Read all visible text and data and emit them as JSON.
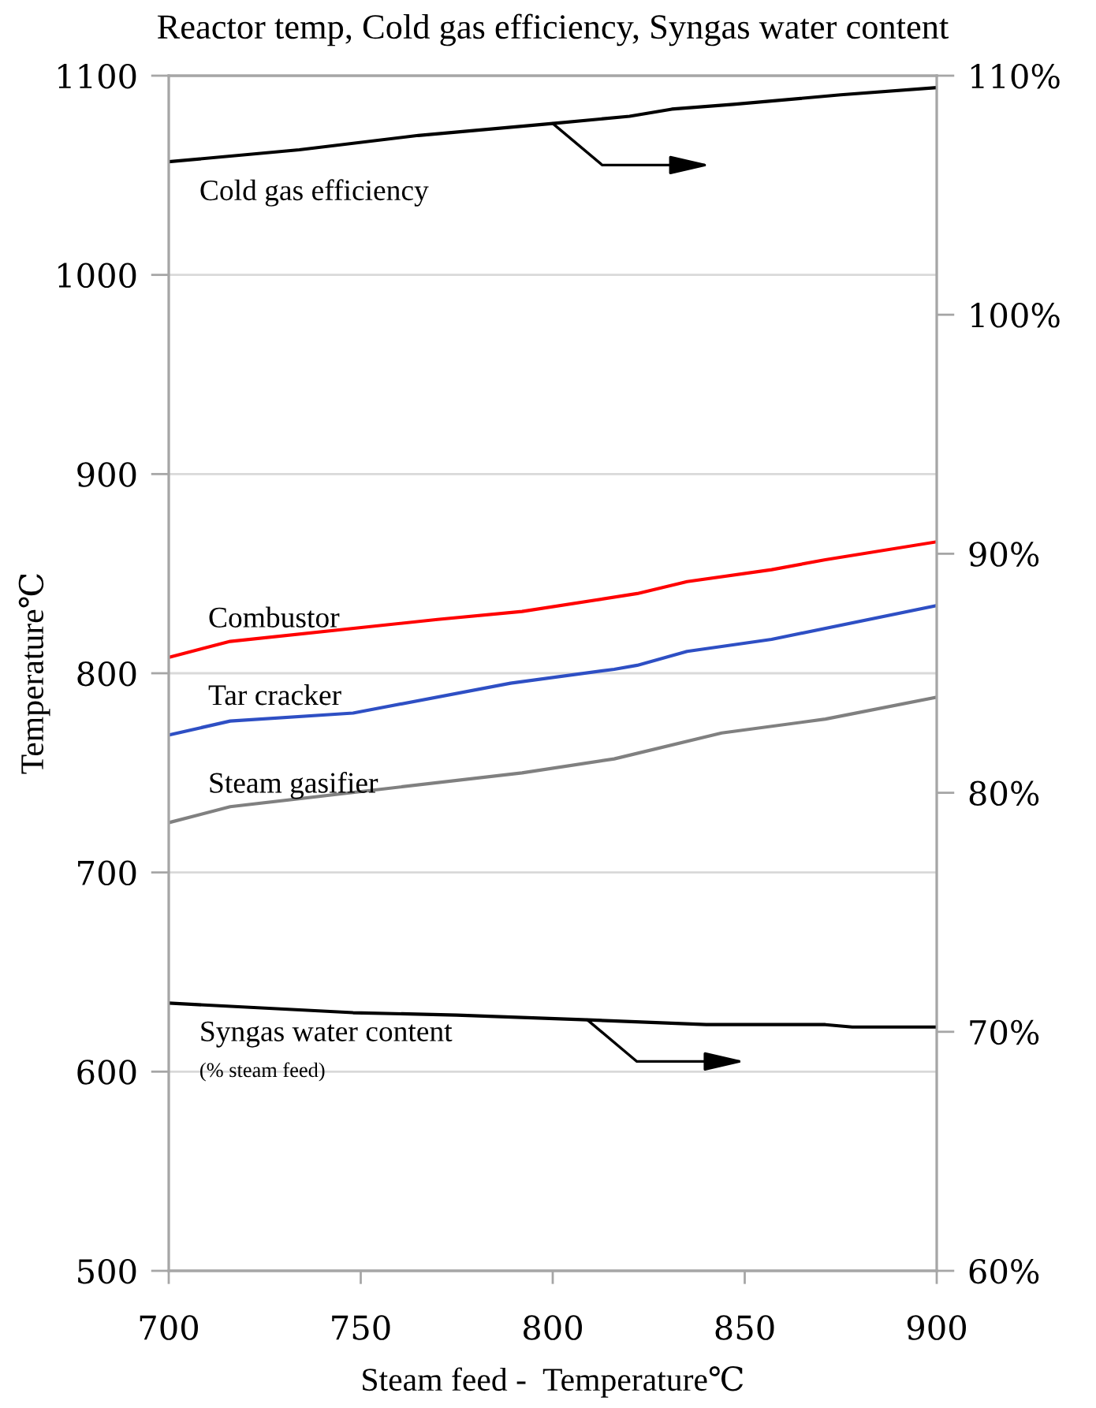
{
  "chart_data": {
    "type": "line",
    "title": "Reactor temp, Cold gas efficiency, Syngas water content",
    "xlabel": "Steam feed -  Temperature℃",
    "ylabel": "Temperature℃",
    "xlim": [
      700,
      900
    ],
    "xticks": [
      700,
      750,
      800,
      850,
      900
    ],
    "ylim": [
      500,
      1100
    ],
    "yticks": [
      500,
      600,
      700,
      800,
      900,
      1000,
      1100
    ],
    "y2lim": [
      60,
      110
    ],
    "y2ticks": [
      {
        "value": 60,
        "label": "60%"
      },
      {
        "value": 70,
        "label": "70%"
      },
      {
        "value": 80,
        "label": "80%"
      },
      {
        "value": 90,
        "label": "90%"
      },
      {
        "value": 100,
        "label": "100%"
      },
      {
        "value": 110,
        "label": "110%"
      }
    ],
    "grid": "y",
    "series": [
      {
        "name": "Cold gas efficiency",
        "color": "#000000",
        "axis": "y2",
        "x": [
          700,
          734,
          765,
          800,
          820,
          831,
          847,
          875,
          900
        ],
        "values": [
          106.4,
          106.9,
          107.5,
          108.0,
          108.3,
          108.6,
          108.8,
          109.2,
          109.5
        ]
      },
      {
        "name": "Combustor",
        "color": "#ff0000",
        "x": [
          700,
          716,
          770,
          792,
          822,
          835,
          857,
          871,
          900
        ],
        "values": [
          808,
          816,
          827,
          831,
          840,
          846,
          852,
          857,
          866
        ]
      },
      {
        "name": "Tar cracker",
        "color": "#2e4fc4",
        "x": [
          700,
          716,
          748,
          789,
          816,
          822,
          835,
          857,
          900
        ],
        "values": [
          769,
          776,
          780,
          795,
          802,
          804,
          811,
          817,
          834
        ]
      },
      {
        "name": "Steam gasifier",
        "color": "#808080",
        "x": [
          700,
          716,
          792,
          816,
          844,
          871,
          900
        ],
        "values": [
          725,
          733,
          750,
          757,
          770,
          777,
          788
        ]
      },
      {
        "name": "Syngas water content\n(% steam feed)",
        "color": "#000000",
        "axis": "y2",
        "x": [
          700,
          748,
          775,
          809,
          840,
          871,
          878,
          900
        ],
        "values": [
          71.2,
          70.8,
          70.7,
          70.5,
          70.3,
          70.3,
          70.2,
          70.2
        ]
      }
    ]
  }
}
